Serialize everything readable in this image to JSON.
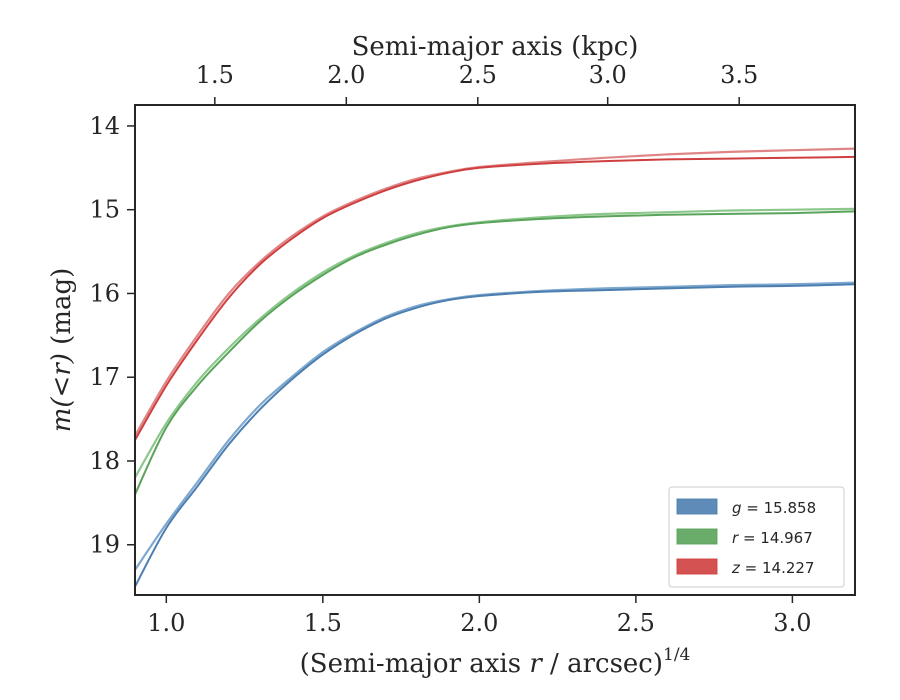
{
  "chart_data": {
    "type": "line",
    "xlabel_pre": "(Semi-major axis ",
    "xlabel_var": "r",
    "xlabel_post": " / arcsec)",
    "xlabel_sup": "1/4",
    "ylabel_pre": "m(<r)",
    "ylabel_post": " (mag)",
    "top_xlabel": "Semi-major axis (kpc)",
    "xlim": [
      0.9,
      3.2
    ],
    "ylim": [
      19.6,
      13.75
    ],
    "y_inverted": true,
    "xticks": [
      {
        "v": 1.0,
        "label": "1.0"
      },
      {
        "v": 1.5,
        "label": "1.5"
      },
      {
        "v": 2.0,
        "label": "2.0"
      },
      {
        "v": 2.5,
        "label": "2.5"
      },
      {
        "v": 3.0,
        "label": "3.0"
      }
    ],
    "yticks": [
      {
        "v": 14,
        "label": "14"
      },
      {
        "v": 15,
        "label": "15"
      },
      {
        "v": 16,
        "label": "16"
      },
      {
        "v": 17,
        "label": "17"
      },
      {
        "v": 18,
        "label": "18"
      },
      {
        "v": 19,
        "label": "19"
      }
    ],
    "top_ticks": [
      {
        "kpc": 1.5,
        "x": 1.155,
        "label": "1.5"
      },
      {
        "kpc": 2.0,
        "x": 1.575,
        "label": "2.0"
      },
      {
        "kpc": 2.5,
        "x": 1.995,
        "label": "2.5"
      },
      {
        "kpc": 3.0,
        "x": 2.41,
        "label": "3.0"
      },
      {
        "kpc": 3.5,
        "x": 2.83,
        "label": "3.5"
      }
    ],
    "legend_position": "lower-right",
    "series": [
      {
        "name": "g",
        "legend_var": "g",
        "legend_value": " = 15.858",
        "color": "#4c7eb0",
        "light_color": "#7ea8cf",
        "x": [
          0.9,
          1.0,
          1.1,
          1.2,
          1.3,
          1.4,
          1.5,
          1.6,
          1.7,
          1.8,
          1.9,
          2.0,
          2.2,
          2.4,
          2.6,
          2.8,
          3.0,
          3.2
        ],
        "model": [
          19.3,
          18.75,
          18.25,
          17.75,
          17.33,
          17.0,
          16.7,
          16.47,
          16.28,
          16.15,
          16.07,
          16.02,
          15.97,
          15.94,
          15.92,
          15.9,
          15.89,
          15.87
        ],
        "observed": [
          19.5,
          18.8,
          18.3,
          17.8,
          17.38,
          17.03,
          16.73,
          16.49,
          16.3,
          16.17,
          16.08,
          16.03,
          15.98,
          15.96,
          15.94,
          15.92,
          15.91,
          15.89
        ]
      },
      {
        "name": "r",
        "legend_var": "r",
        "legend_value": " = 14.967",
        "color": "#5aa35a",
        "light_color": "#8cc88c",
        "x": [
          0.9,
          1.0,
          1.1,
          1.2,
          1.3,
          1.4,
          1.5,
          1.6,
          1.7,
          1.8,
          1.9,
          2.0,
          2.2,
          2.4,
          2.6,
          2.8,
          3.0,
          3.2
        ],
        "model": [
          18.2,
          17.55,
          17.05,
          16.65,
          16.3,
          16.0,
          15.75,
          15.55,
          15.4,
          15.28,
          15.2,
          15.15,
          15.09,
          15.05,
          15.03,
          15.01,
          15.0,
          14.99
        ],
        "observed": [
          18.4,
          17.6,
          17.1,
          16.7,
          16.33,
          16.03,
          15.78,
          15.57,
          15.42,
          15.3,
          15.21,
          15.16,
          15.11,
          15.08,
          15.06,
          15.05,
          15.04,
          15.02
        ]
      },
      {
        "name": "z",
        "legend_var": "z",
        "legend_value": " = 14.227",
        "color": "#cf3f3f",
        "light_color": "#e08585",
        "x": [
          0.9,
          1.0,
          1.1,
          1.2,
          1.3,
          1.4,
          1.5,
          1.6,
          1.7,
          1.8,
          1.9,
          2.0,
          2.2,
          2.4,
          2.6,
          2.8,
          3.0,
          3.2
        ],
        "model": [
          17.7,
          17.05,
          16.5,
          16.0,
          15.62,
          15.32,
          15.08,
          14.9,
          14.75,
          14.63,
          14.55,
          14.49,
          14.43,
          14.38,
          14.34,
          14.31,
          14.29,
          14.27
        ],
        "observed": [
          17.75,
          17.1,
          16.55,
          16.05,
          15.65,
          15.35,
          15.1,
          14.92,
          14.77,
          14.65,
          14.56,
          14.5,
          14.45,
          14.42,
          14.4,
          14.39,
          14.38,
          14.37
        ]
      }
    ]
  }
}
